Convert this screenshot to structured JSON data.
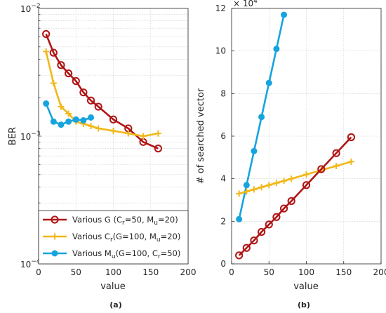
{
  "chart_data": [
    {
      "id": "a",
      "type": "line",
      "subcaption": "(a)",
      "xlabel": "value",
      "ylabel": "BER",
      "yscale": "log",
      "xlim": [
        0,
        200
      ],
      "ylim": [
        0.0001,
        0.01
      ],
      "xticks": [
        "0",
        "50",
        "100",
        "150",
        "200"
      ],
      "yticks": [
        {
          "base": "10",
          "exp": "−4"
        },
        {
          "base": "10",
          "exp": "−3"
        },
        {
          "base": "10",
          "exp": "−2"
        }
      ],
      "grid": true,
      "legend_position": "bottom",
      "legend": [
        {
          "pre": "Various G (C",
          "s1": "r",
          "mid": "=50, M",
          "s2": "u",
          "post": "=20)"
        },
        {
          "pre": "Various C",
          "s1": "r",
          "mid": "(G=100, M",
          "s2": "u",
          "post": "=20)"
        },
        {
          "pre": "Various M",
          "s1": "u",
          "mid": "(G=100, C",
          "s2": "r",
          "post": "=50)"
        }
      ],
      "series": [
        {
          "color": "#b01515",
          "marker": "circle",
          "x": [
            10,
            20,
            30,
            40,
            50,
            60,
            70,
            80,
            100,
            120,
            140,
            160
          ],
          "y": [
            0.0063,
            0.0045,
            0.0036,
            0.0031,
            0.0027,
            0.0022,
            0.0019,
            0.0017,
            0.00135,
            0.00115,
            0.0009,
            0.0008
          ]
        },
        {
          "color": "#f0b81a",
          "marker": "plus",
          "x": [
            10,
            20,
            30,
            40,
            50,
            60,
            70,
            80,
            100,
            120,
            140,
            160
          ],
          "y": [
            0.0046,
            0.0026,
            0.0017,
            0.0015,
            0.0013,
            0.00125,
            0.0012,
            0.00115,
            0.0011,
            0.00105,
            0.001,
            0.00105
          ]
        },
        {
          "color": "#16a4de",
          "marker": "dot",
          "x": [
            10,
            20,
            30,
            40,
            50,
            60,
            70
          ],
          "y": [
            0.0018,
            0.0013,
            0.00123,
            0.0013,
            0.00135,
            0.00133,
            0.0014
          ]
        }
      ]
    },
    {
      "id": "b",
      "type": "line",
      "subcaption": "(b)",
      "xlabel": "value",
      "ylabel": "# of searched vector",
      "multiplier": {
        "base": "× 10",
        "exp": "4"
      },
      "xlim": [
        0,
        200
      ],
      "ylim": [
        0,
        12
      ],
      "xticks": [
        "0",
        "50",
        "100",
        "150",
        "200"
      ],
      "yticks": [
        "0",
        "2",
        "4",
        "6",
        "8",
        "10",
        "12"
      ],
      "grid": true,
      "series": [
        {
          "color": "#16a4de",
          "marker": "dot",
          "x": [
            10,
            20,
            30,
            40,
            50,
            60,
            70
          ],
          "y": [
            2.1,
            3.7,
            5.3,
            6.9,
            8.5,
            10.1,
            11.7
          ]
        },
        {
          "color": "#f0b81a",
          "marker": "plus",
          "x": [
            10,
            20,
            30,
            40,
            50,
            60,
            70,
            80,
            100,
            120,
            140,
            160
          ],
          "y": [
            3.3,
            3.4,
            3.5,
            3.6,
            3.7,
            3.8,
            3.9,
            4.0,
            4.2,
            4.4,
            4.6,
            4.8
          ]
        },
        {
          "color": "#b01515",
          "marker": "circle",
          "x": [
            10,
            20,
            30,
            40,
            50,
            60,
            70,
            80,
            100,
            120,
            140,
            160
          ],
          "y": [
            0.4,
            0.75,
            1.1,
            1.5,
            1.85,
            2.2,
            2.6,
            2.95,
            3.7,
            4.45,
            5.2,
            5.95
          ]
        }
      ]
    }
  ]
}
